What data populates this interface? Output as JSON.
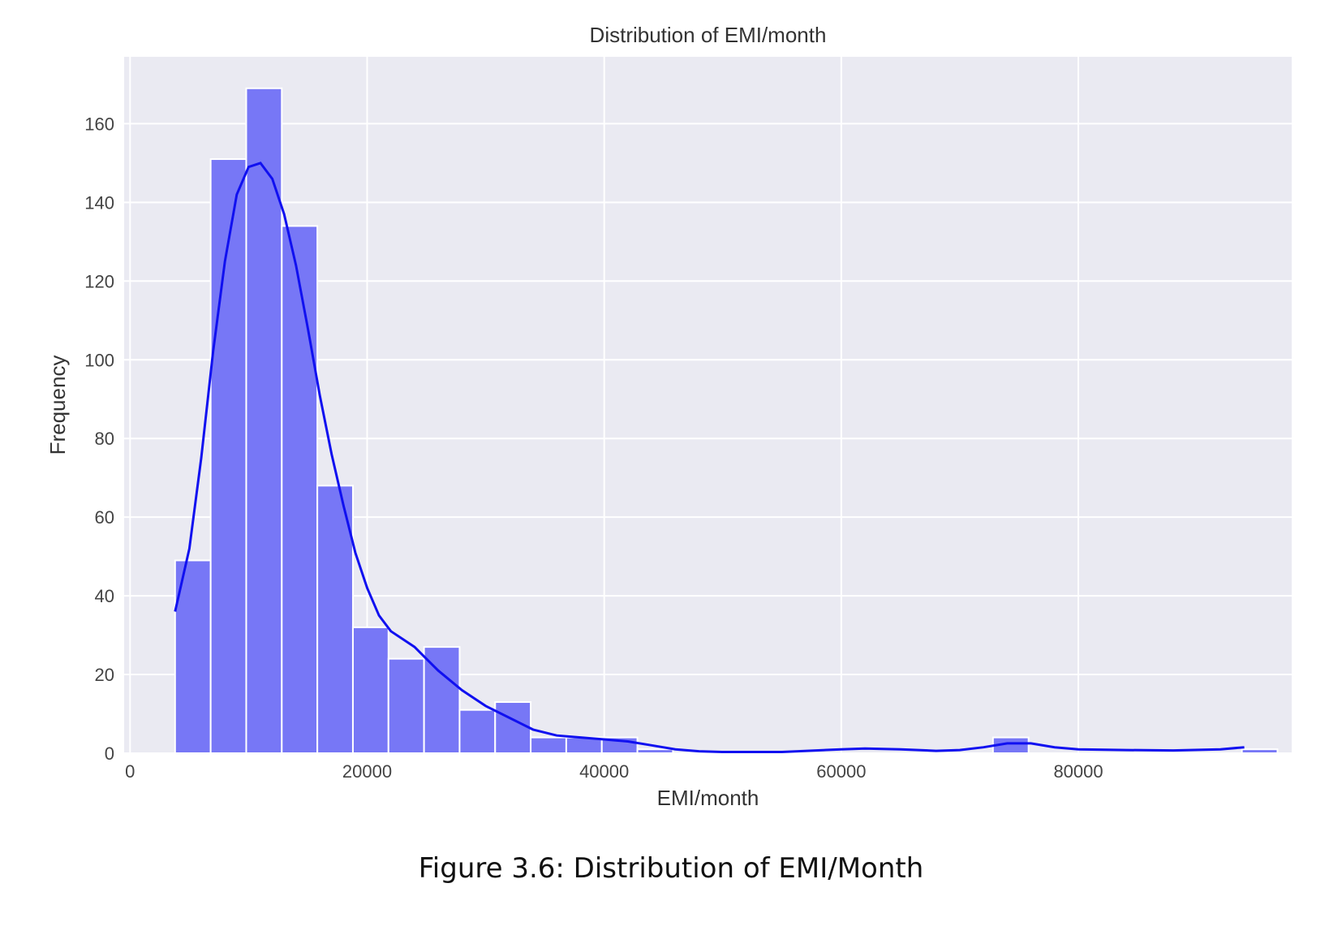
{
  "chart_data": {
    "type": "bar",
    "title": "Distribution of EMI/month",
    "xlabel": "EMI/month",
    "ylabel": "Frequency",
    "xlim": [
      -500,
      98000
    ],
    "ylim": [
      0,
      177
    ],
    "xticks": [
      0,
      20000,
      40000,
      60000,
      80000
    ],
    "yticks": [
      0,
      20,
      40,
      60,
      80,
      100,
      120,
      140,
      160
    ],
    "grid": true,
    "bin_start": 3800,
    "bin_width": 3000,
    "values": [
      49,
      151,
      169,
      134,
      68,
      32,
      24,
      27,
      11,
      13,
      4,
      4,
      4,
      1,
      0,
      0,
      0,
      0,
      0,
      0,
      0,
      0,
      0,
      4,
      0,
      0,
      0,
      0,
      0,
      0,
      1
    ],
    "kde": {
      "x": [
        3800,
        5000,
        6000,
        7000,
        8000,
        9000,
        10000,
        11000,
        12000,
        13000,
        14000,
        15000,
        16000,
        17000,
        18000,
        19000,
        20000,
        21000,
        22000,
        23000,
        24000,
        25000,
        26000,
        28000,
        30000,
        32000,
        34000,
        36000,
        38000,
        40000,
        42000,
        44000,
        46000,
        48000,
        50000,
        55000,
        60000,
        62000,
        65000,
        68000,
        70000,
        72000,
        74000,
        76000,
        78000,
        80000,
        84000,
        88000,
        92000,
        94000
      ],
      "y": [
        36,
        52,
        75,
        102,
        125,
        142,
        149,
        150,
        146,
        137,
        124,
        108,
        91,
        76,
        63,
        51,
        42,
        35,
        31,
        29,
        27,
        24,
        21,
        16,
        12,
        9,
        6,
        4.5,
        4,
        3.5,
        3,
        2,
        1,
        0.5,
        0.3,
        0.3,
        1,
        1.2,
        1,
        0.6,
        0.8,
        1.5,
        2.5,
        2.5,
        1.5,
        1,
        0.8,
        0.7,
        1,
        1.5
      ]
    },
    "colors": {
      "bar_fill": "#7777f6",
      "bar_edge": "#ffffff",
      "kde_line": "#1010f0",
      "plot_bg": "#eaeaf2",
      "grid": "#ffffff"
    }
  },
  "caption": "Figure 3.6: Distribution of EMI/Month"
}
